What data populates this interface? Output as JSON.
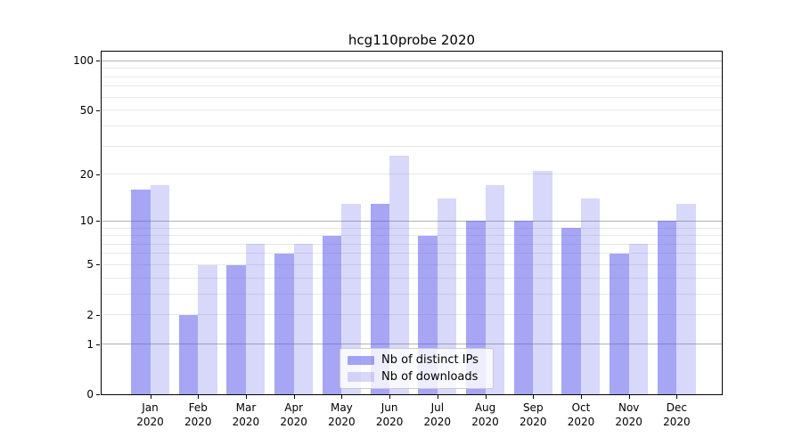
{
  "title": "hcg110probe 2020",
  "chart_data": {
    "type": "bar",
    "title": "hcg110probe 2020",
    "categories": [
      {
        "month": "Jan",
        "year": "2020"
      },
      {
        "month": "Feb",
        "year": "2020"
      },
      {
        "month": "Mar",
        "year": "2020"
      },
      {
        "month": "Apr",
        "year": "2020"
      },
      {
        "month": "May",
        "year": "2020"
      },
      {
        "month": "Jun",
        "year": "2020"
      },
      {
        "month": "Jul",
        "year": "2020"
      },
      {
        "month": "Aug",
        "year": "2020"
      },
      {
        "month": "Sep",
        "year": "2020"
      },
      {
        "month": "Oct",
        "year": "2020"
      },
      {
        "month": "Nov",
        "year": "2020"
      },
      {
        "month": "Dec",
        "year": "2020"
      }
    ],
    "series": [
      {
        "name": "Nb of distinct IPs",
        "color": "rgba(85,85,235,0.52)",
        "values": [
          16,
          2,
          5,
          6,
          8,
          13,
          8,
          10,
          10,
          9,
          6,
          10
        ]
      },
      {
        "name": "Nb of downloads",
        "color": "rgba(85,85,235,0.23)",
        "values": [
          17,
          5,
          7,
          7,
          13,
          26,
          14,
          17,
          21,
          14,
          7,
          13
        ]
      }
    ],
    "y_axis": {
      "scale": "log1p",
      "labeled_ticks": [
        100,
        50,
        20,
        10,
        5,
        2,
        1,
        0
      ],
      "major_gridlines": [
        100,
        10,
        1
      ],
      "minor_gridlines": [
        90,
        80,
        70,
        60,
        50,
        40,
        30,
        20,
        9,
        8,
        7,
        6,
        5,
        4,
        3,
        2
      ],
      "ylim": [
        0,
        116
      ]
    },
    "legend": {
      "position": "lower-center",
      "entries": [
        "Nb of distinct IPs",
        "Nb of downloads"
      ]
    },
    "colors": {
      "bars_base": "#5555eb",
      "major_grid": "#b3b3b3",
      "minor_grid": "#e8e8e8",
      "axis": "#000000"
    },
    "grid": "on"
  }
}
